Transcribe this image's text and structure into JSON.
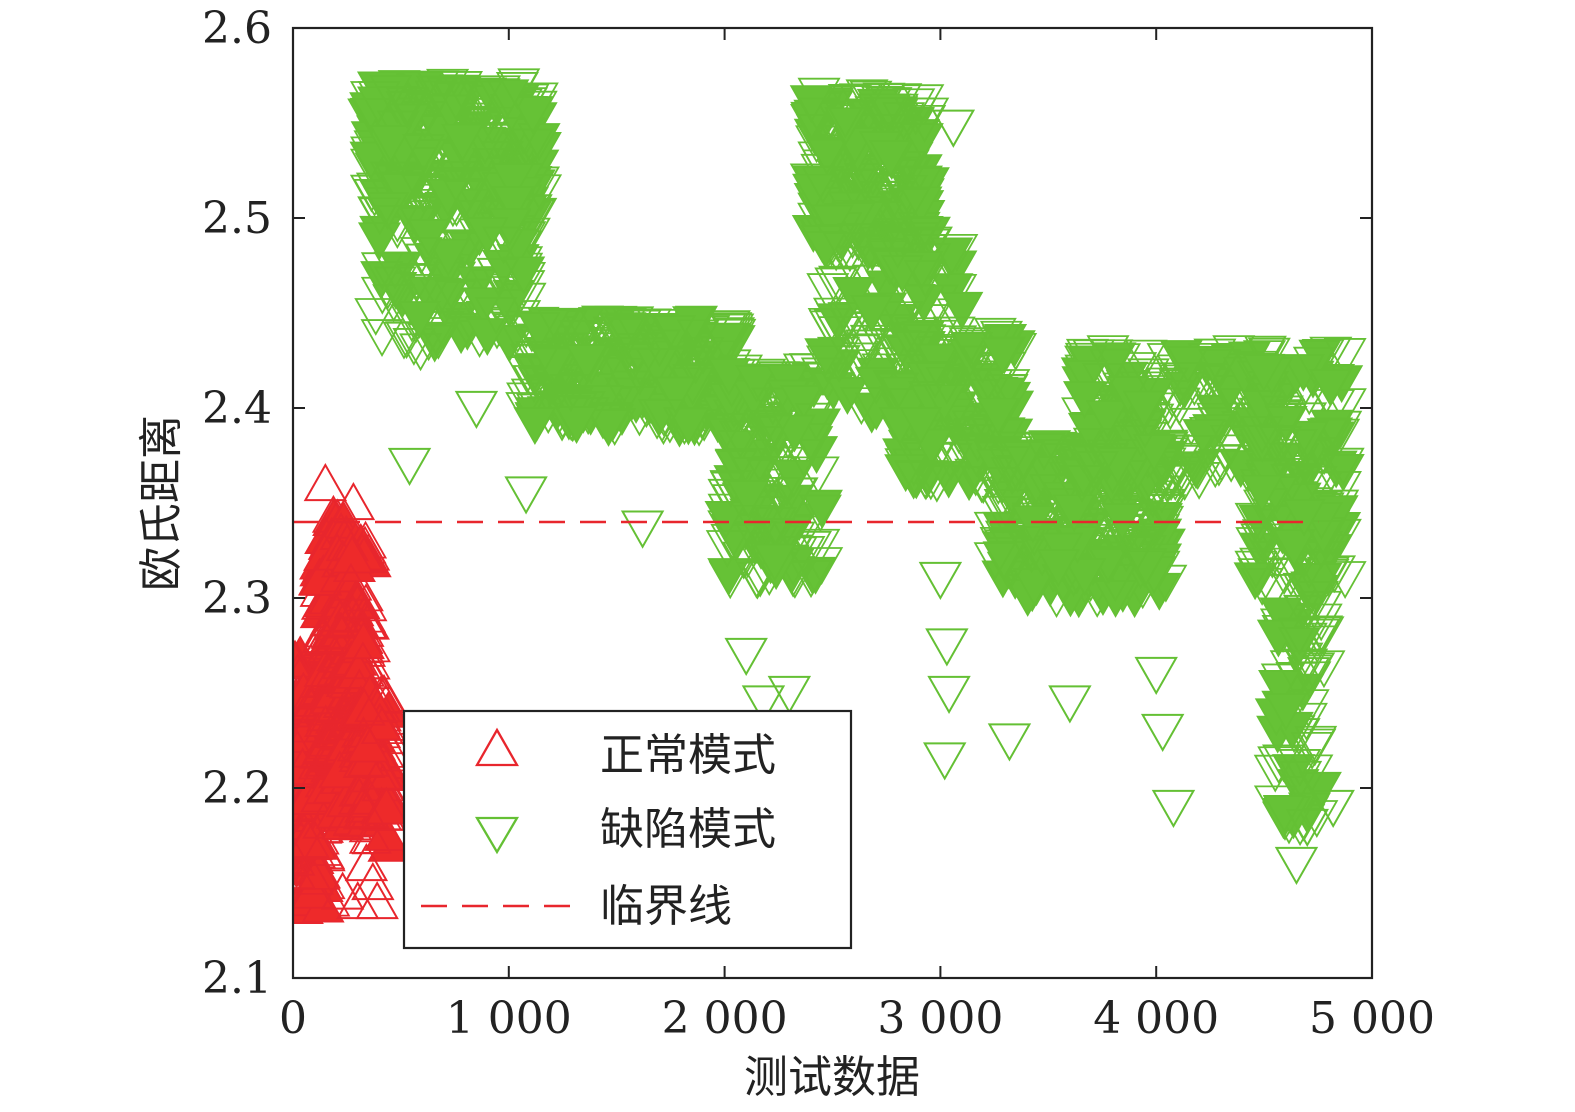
{
  "chart_data": {
    "type": "scatter",
    "xlabel": "测试数据",
    "ylabel": "欧氏距离",
    "xlim": [
      0,
      5000
    ],
    "ylim": [
      2.1,
      2.6
    ],
    "x_ticks": [
      0,
      1000,
      2000,
      3000,
      4000,
      5000
    ],
    "x_tick_labels": [
      "0",
      "1 000",
      "2 000",
      "3 000",
      "4 000",
      "5 000"
    ],
    "y_ticks": [
      2.1,
      2.2,
      2.3,
      2.4,
      2.5,
      2.6
    ],
    "y_tick_labels": [
      "2.1",
      "2.2",
      "2.3",
      "2.4",
      "2.5",
      "2.6"
    ],
    "grid": false,
    "legend_position": "lower-center",
    "threshold": {
      "name": "临界线",
      "y": 2.34,
      "x_range": [
        0,
        4750
      ],
      "color": "#e8262d",
      "style": "dashed"
    },
    "series": [
      {
        "name": "正常模式",
        "marker": "triangle-up",
        "color": "#e8262d",
        "fill_color": "#ee2a2a",
        "clusters": [
          {
            "x_range": [
              0,
              170
            ],
            "y_range": [
              2.135,
              2.27
            ],
            "count": 170
          },
          {
            "x_range": [
              120,
              260
            ],
            "y_range": [
              2.2,
              2.345
            ],
            "count": 120
          },
          {
            "x_range": [
              200,
              360
            ],
            "y_range": [
              2.18,
              2.33
            ],
            "count": 120
          },
          {
            "x_range": [
              300,
              450
            ],
            "y_range": [
              2.17,
              2.25
            ],
            "count": 90
          }
        ],
        "points": [
          {
            "x": 150,
            "y": 2.36
          },
          {
            "x": 280,
            "y": 2.35
          },
          {
            "x": 140,
            "y": 2.28
          },
          {
            "x": 340,
            "y": 2.16
          },
          {
            "x": 370,
            "y": 2.15
          },
          {
            "x": 390,
            "y": 2.14
          },
          {
            "x": 230,
            "y": 2.145
          },
          {
            "x": 300,
            "y": 2.14
          }
        ]
      },
      {
        "name": "缺陷模式",
        "marker": "triangle-down",
        "color": "#64c034",
        "fill_color": "#66c236",
        "clusters": [
          {
            "x_range": [
              350,
              1150
            ],
            "y_range": [
              2.5,
              2.57
            ],
            "count": 260
          },
          {
            "x_range": [
              380,
              1100
            ],
            "y_range": [
              2.43,
              2.52
            ],
            "count": 120
          },
          {
            "x_range": [
              1080,
              2050
            ],
            "y_range": [
              2.39,
              2.445
            ],
            "count": 300
          },
          {
            "x_range": [
              2000,
              2450
            ],
            "y_range": [
              2.31,
              2.42
            ],
            "count": 180
          },
          {
            "x_range": [
              2400,
              2950
            ],
            "y_range": [
              2.48,
              2.565
            ],
            "count": 220
          },
          {
            "x_range": [
              2450,
              3100
            ],
            "y_range": [
              2.39,
              2.49
            ],
            "count": 110
          },
          {
            "x_range": [
              2800,
              3350
            ],
            "y_range": [
              2.36,
              2.44
            ],
            "count": 170
          },
          {
            "x_range": [
              3250,
              4050
            ],
            "y_range": [
              2.3,
              2.38
            ],
            "count": 260
          },
          {
            "x_range": [
              3650,
              4550
            ],
            "y_range": [
              2.36,
              2.43
            ],
            "count": 220
          },
          {
            "x_range": [
              4450,
              4880
            ],
            "y_range": [
              2.3,
              2.43
            ],
            "count": 160
          },
          {
            "x_range": [
              4550,
              4780
            ],
            "y_range": [
              2.18,
              2.3
            ],
            "count": 70
          }
        ],
        "points": [
          {
            "x": 540,
            "y": 2.37
          },
          {
            "x": 850,
            "y": 2.4
          },
          {
            "x": 950,
            "y": 2.47
          },
          {
            "x": 1080,
            "y": 2.355
          },
          {
            "x": 1620,
            "y": 2.337
          },
          {
            "x": 2100,
            "y": 2.27
          },
          {
            "x": 2180,
            "y": 2.245
          },
          {
            "x": 2300,
            "y": 2.25
          },
          {
            "x": 3060,
            "y": 2.548
          },
          {
            "x": 3000,
            "y": 2.31
          },
          {
            "x": 3030,
            "y": 2.275
          },
          {
            "x": 3040,
            "y": 2.25
          },
          {
            "x": 3020,
            "y": 2.215
          },
          {
            "x": 3320,
            "y": 2.225
          },
          {
            "x": 3600,
            "y": 2.245
          },
          {
            "x": 4000,
            "y": 2.26
          },
          {
            "x": 4080,
            "y": 2.19
          },
          {
            "x": 4030,
            "y": 2.23
          },
          {
            "x": 4650,
            "y": 2.16
          },
          {
            "x": 4700,
            "y": 2.18
          },
          {
            "x": 4820,
            "y": 2.19
          }
        ]
      }
    ]
  }
}
